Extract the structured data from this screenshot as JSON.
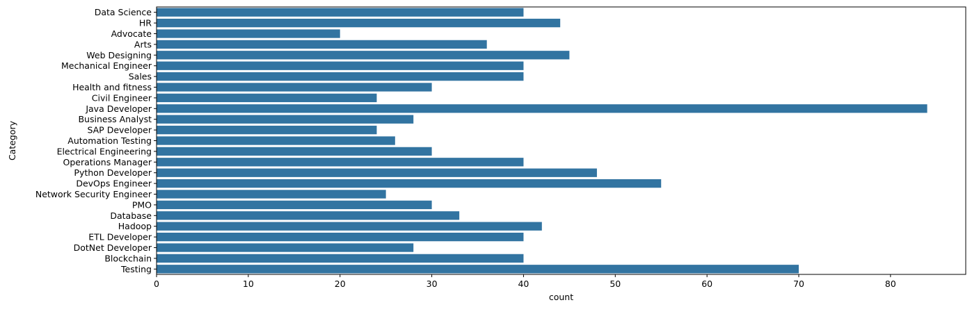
{
  "chart_data": {
    "type": "bar",
    "orientation": "horizontal",
    "title": "",
    "xlabel": "count",
    "ylabel": "Category",
    "xlim": [
      0,
      88.2
    ],
    "xticks": [
      0,
      10,
      20,
      30,
      40,
      50,
      60,
      70,
      80
    ],
    "grid": false,
    "legend": "none",
    "bar_color": "#3274a1",
    "categories": [
      "Data Science",
      "HR",
      "Advocate",
      "Arts",
      "Web Designing",
      "Mechanical Engineer",
      "Sales",
      "Health and fitness",
      "Civil Engineer",
      "Java Developer",
      "Business Analyst",
      "SAP Developer",
      "Automation Testing",
      "Electrical Engineering",
      "Operations Manager",
      "Python Developer",
      "DevOps Engineer",
      "Network Security Engineer",
      "PMO",
      "Database",
      "Hadoop",
      "ETL Developer",
      "DotNet Developer",
      "Blockchain",
      "Testing"
    ],
    "values": [
      40,
      44,
      20,
      36,
      45,
      40,
      40,
      30,
      24,
      84,
      28,
      24,
      26,
      30,
      40,
      48,
      55,
      25,
      30,
      33,
      42,
      40,
      28,
      40,
      70
    ]
  }
}
